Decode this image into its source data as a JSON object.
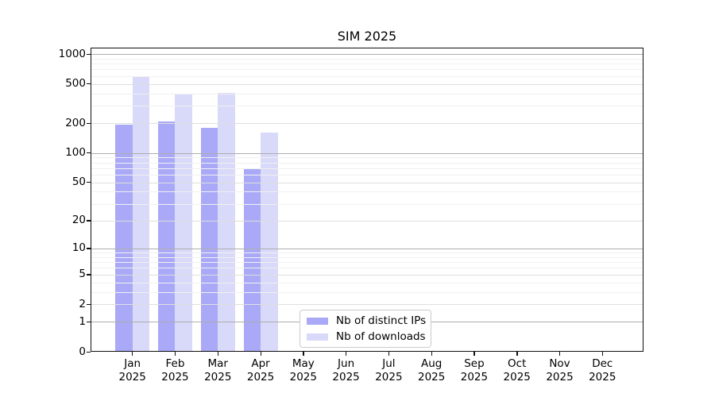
{
  "title": "SIM 2025",
  "chart_data": {
    "type": "bar",
    "title": "SIM 2025",
    "yscale": "log1p",
    "categories": [
      "Jan",
      "Feb",
      "Mar",
      "Apr",
      "May",
      "Jun",
      "Jul",
      "Aug",
      "Sep",
      "Oct",
      "Nov",
      "Dec"
    ],
    "category_year": "2025",
    "series": [
      {
        "name": "Nb of distinct IPs",
        "color": "#a9a9f8",
        "values": [
          195,
          210,
          180,
          70,
          0,
          0,
          0,
          0,
          0,
          0,
          0,
          0
        ]
      },
      {
        "name": "Nb of downloads",
        "color": "#d9d9fa",
        "values": [
          585,
          400,
          405,
          160,
          0,
          0,
          0,
          0,
          0,
          0,
          0,
          0
        ]
      }
    ],
    "yticks": [
      0,
      1,
      2,
      5,
      10,
      20,
      50,
      100,
      200,
      500,
      1000
    ],
    "ylim": [
      0,
      1160
    ],
    "grid": "both",
    "legend_position": "lower center"
  },
  "colors": {
    "grid_power": "#aeaeae",
    "grid_major": "#dedede",
    "grid_minor": "#f0f0f0",
    "spine": "#0f0f0f",
    "background": "#ffffff"
  }
}
